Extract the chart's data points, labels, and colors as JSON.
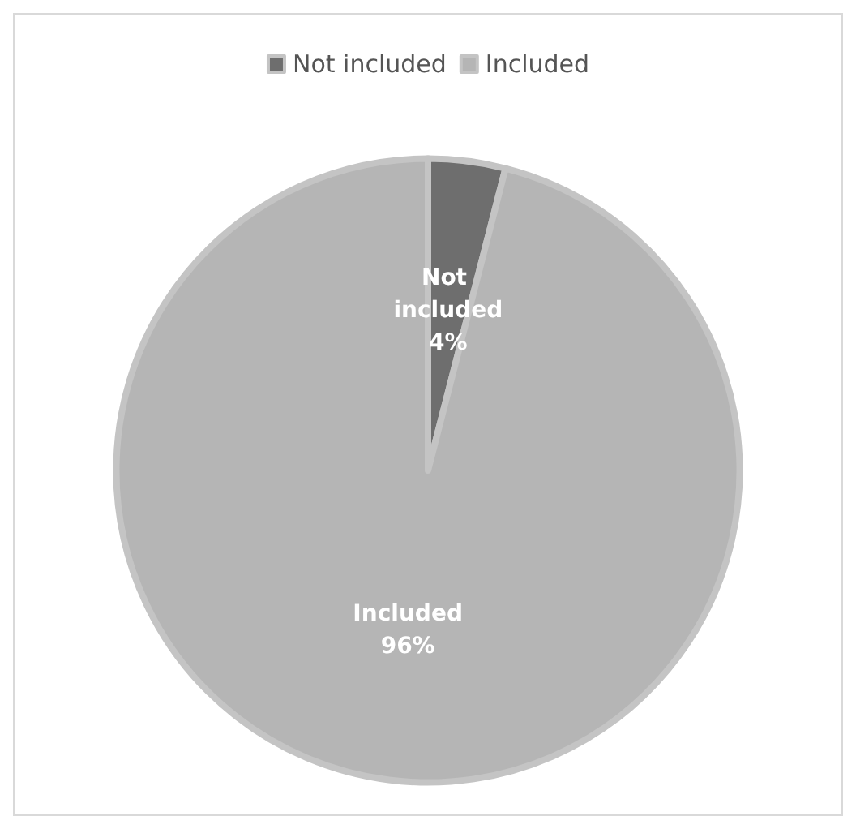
{
  "chart_data": {
    "type": "pie",
    "categories": [
      "Not included",
      "Included"
    ],
    "values": [
      4,
      96
    ],
    "colors": [
      "#6e6e6e",
      "#b5b5b5"
    ],
    "value_labels": [
      "4%",
      "96%"
    ],
    "legend": "top"
  }
}
